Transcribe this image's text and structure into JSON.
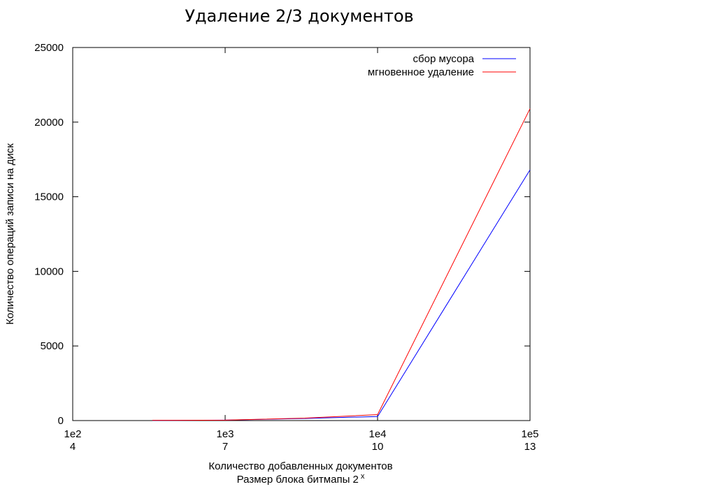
{
  "chart_data": {
    "type": "line",
    "title": "Удаление 2/3 документов",
    "xlabel": "Количество добавленных документов",
    "xlabel2_prefix": "Размер блока битмапы 2",
    "xlabel2_sup": "x",
    "ylabel": "Количество операций записи на диск",
    "xscale": "log",
    "xlim": [
      100,
      100000
    ],
    "ylim": [
      0,
      25000
    ],
    "x_ticks": [
      {
        "value": 100,
        "label": "1e2",
        "sublabel": "4"
      },
      {
        "value": 1000,
        "label": "1e3",
        "sublabel": "7"
      },
      {
        "value": 10000,
        "label": "1e4",
        "sublabel": "10"
      },
      {
        "value": 100000,
        "label": "1e5",
        "sublabel": "13"
      }
    ],
    "y_ticks": [
      {
        "value": 0,
        "label": "0"
      },
      {
        "value": 5000,
        "label": "5000"
      },
      {
        "value": 10000,
        "label": "10000"
      },
      {
        "value": 15000,
        "label": "15000"
      },
      {
        "value": 20000,
        "label": "20000"
      },
      {
        "value": 25000,
        "label": "25000"
      }
    ],
    "grid": false,
    "legend_position": "top-right",
    "series": [
      {
        "name": "сбор мусора",
        "color": "#0000ff",
        "x": [
          333,
          1000,
          3333,
          10000,
          100000
        ],
        "y": [
          14,
          27,
          140,
          270,
          16800
        ]
      },
      {
        "name": "мгновенное удаление",
        "color": "#ff0000",
        "x": [
          333,
          1000,
          3333,
          10000,
          100000
        ],
        "y": [
          15,
          30,
          165,
          400,
          20900
        ]
      }
    ]
  }
}
